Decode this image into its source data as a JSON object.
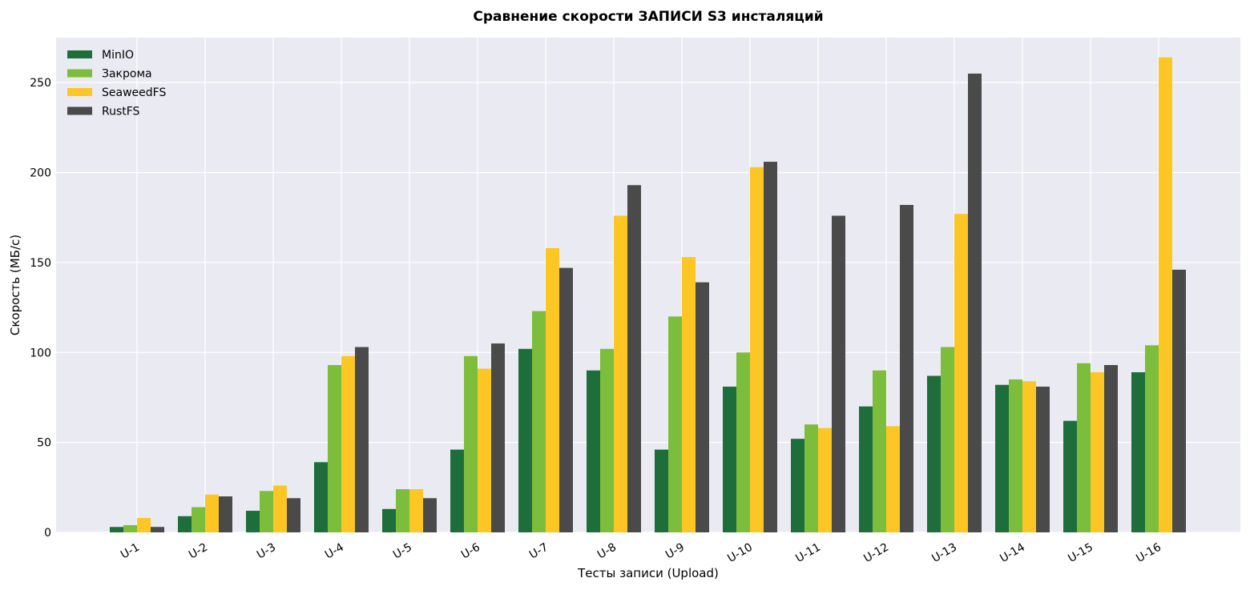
{
  "chart_data": {
    "type": "bar",
    "title": "Сравнение скорости ЗАПИСИ S3 инсталяций",
    "xlabel": "Тесты записи (Upload)",
    "ylabel": "Скорость (МБ/с)",
    "ylim": [
      0,
      275
    ],
    "yticks": [
      0,
      50,
      100,
      150,
      200,
      250
    ],
    "grid": true,
    "legend_position": "top-left",
    "categories": [
      "U-1",
      "U-2",
      "U-3",
      "U-4",
      "U-5",
      "U-6",
      "U-7",
      "U-8",
      "U-9",
      "U-10",
      "U-11",
      "U-12",
      "U-13",
      "U-14",
      "U-15",
      "U-16"
    ],
    "series": [
      {
        "name": "MinIO",
        "color": "#1e6e3b",
        "values": [
          3,
          9,
          12,
          39,
          13,
          46,
          102,
          90,
          46,
          81,
          52,
          70,
          87,
          82,
          62,
          89
        ]
      },
      {
        "name": "Закрома",
        "color": "#7dbd3c",
        "values": [
          4,
          14,
          23,
          93,
          24,
          98,
          123,
          102,
          120,
          100,
          60,
          90,
          103,
          85,
          94,
          104
        ]
      },
      {
        "name": "SeaweedFS",
        "color": "#fcc624",
        "values": [
          8,
          21,
          26,
          98,
          24,
          91,
          158,
          176,
          153,
          203,
          58,
          59,
          177,
          84,
          89,
          264
        ]
      },
      {
        "name": "RustFS",
        "color": "#4a4a4a",
        "values": [
          3,
          20,
          19,
          103,
          19,
          105,
          147,
          193,
          139,
          206,
          176,
          182,
          255,
          81,
          93,
          146
        ]
      }
    ]
  }
}
